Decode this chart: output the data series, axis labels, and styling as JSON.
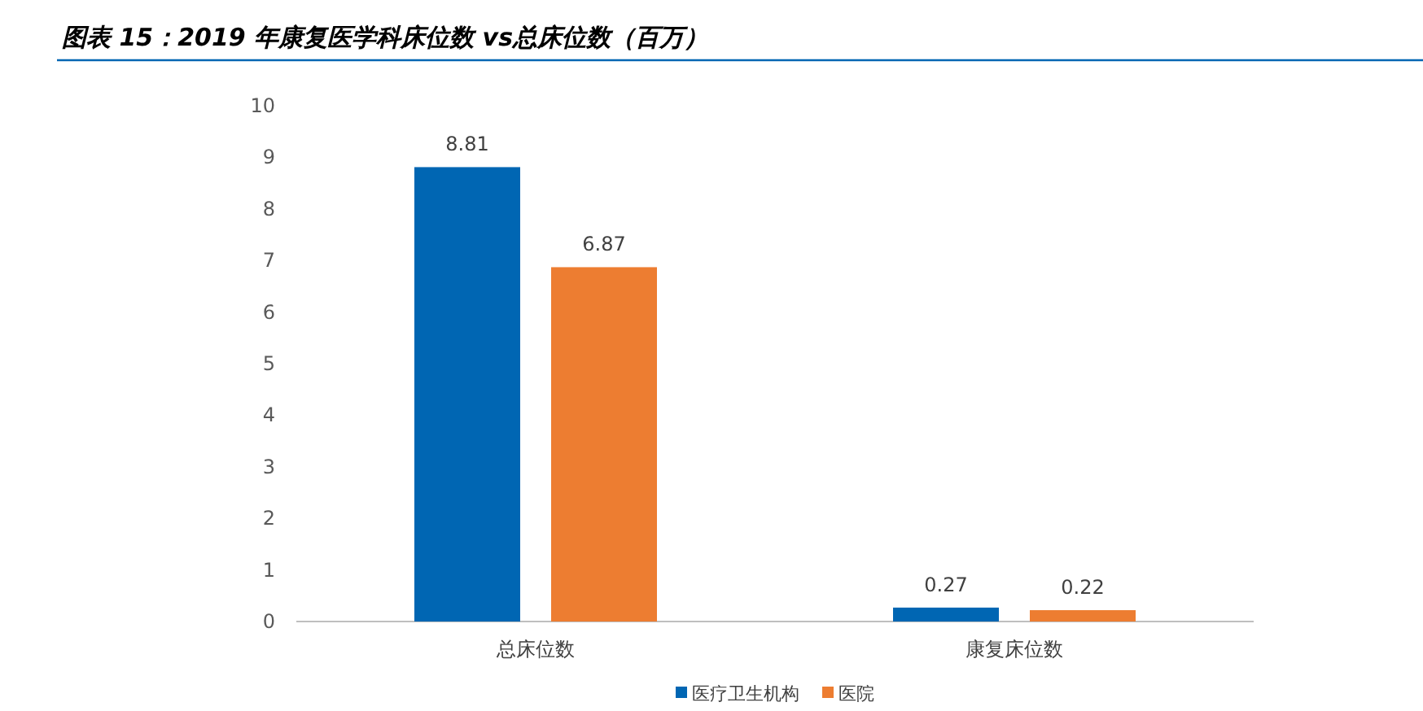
{
  "chart_data": {
    "type": "bar",
    "title": "图表 15：2019 年康复医学科床位数 vs总床位数（百万）",
    "categories": [
      "总床位数",
      "康复床位数"
    ],
    "series": [
      {
        "name": "医疗卫生机构",
        "color": "#0066b3",
        "values": [
          8.81,
          0.27
        ]
      },
      {
        "name": "医院",
        "color": "#ed7d31",
        "values": [
          6.87,
          0.22
        ]
      }
    ],
    "ylim": [
      0,
      10
    ],
    "yticks": [
      0,
      1,
      2,
      3,
      4,
      5,
      6,
      7,
      8,
      9,
      10
    ],
    "data_labels": true,
    "legend": "bottom",
    "grid": false
  }
}
